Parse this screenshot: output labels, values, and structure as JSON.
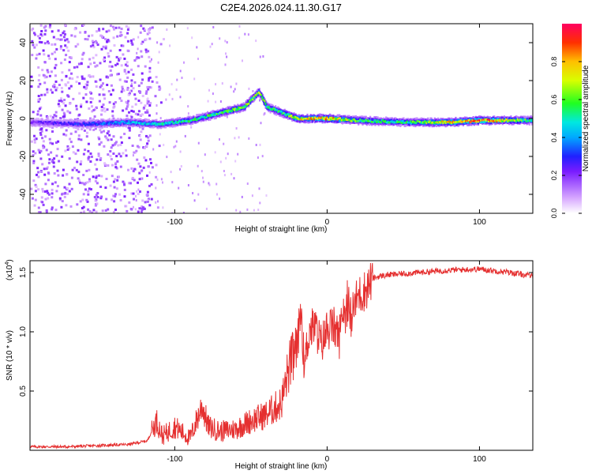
{
  "title": "C2E4.2026.024.11.30.G17",
  "chart_data": [
    {
      "type": "heatmap",
      "name": "spectrogram",
      "xlabel": "Height of straight line (km)",
      "ylabel": "Frequency (Hz)",
      "xlim": [
        -195,
        135
      ],
      "ylim": [
        -50,
        50
      ],
      "xticks": [
        -100,
        0,
        100
      ],
      "yticks": [
        -40,
        -20,
        0,
        20,
        40
      ],
      "colorbar": {
        "label": "Normalized spectral amplitude",
        "ticks": [
          "0.0",
          "0.2",
          "0.4",
          "0.6",
          "0.8"
        ],
        "tick_values": [
          0.0,
          0.2,
          0.4,
          0.6,
          0.8
        ],
        "range": [
          0,
          1
        ]
      },
      "ridge": {
        "description_points_x": [
          -195,
          -160,
          -130,
          -110,
          -90,
          -70,
          -55,
          -45,
          -40,
          -30,
          -20,
          0,
          20,
          50,
          80,
          100,
          135
        ],
        "freq": [
          -2,
          -3,
          -2,
          -3,
          -1,
          3,
          6,
          14,
          6,
          3,
          0,
          0,
          -1,
          -2,
          -2,
          -1,
          -1
        ],
        "amplitude": [
          0.2,
          0.3,
          0.4,
          0.45,
          0.5,
          0.55,
          0.6,
          0.65,
          0.5,
          0.55,
          0.7,
          0.8,
          0.55,
          0.5,
          0.75,
          0.85,
          0.5
        ]
      }
    },
    {
      "type": "line",
      "name": "snr",
      "xlabel": "Height of straight line (km)",
      "ylabel": "SNR (10 * v/v)",
      "scale_label": "(x10",
      "scale_exp": "4",
      "scale_close": ")",
      "xlim": [
        -195,
        135
      ],
      "ylim": [
        0,
        1.6
      ],
      "xticks": [
        -100,
        0,
        100
      ],
      "yticks": [
        "0.5",
        "1.0",
        "1.5"
      ],
      "ytick_values": [
        0.5,
        1.0,
        1.5
      ],
      "color": "#e53030",
      "x": [
        -195,
        -170,
        -150,
        -130,
        -118,
        -112,
        -108,
        -100,
        -90,
        -82,
        -78,
        -70,
        -60,
        -50,
        -40,
        -30,
        -25,
        -20,
        -17,
        -15,
        -12,
        -8,
        -4,
        0,
        4,
        8,
        10,
        15,
        20,
        25,
        30,
        35,
        40,
        60,
        80,
        100,
        120,
        135
      ],
      "y": [
        0.03,
        0.03,
        0.04,
        0.05,
        0.08,
        0.25,
        0.12,
        0.2,
        0.1,
        0.38,
        0.2,
        0.16,
        0.18,
        0.25,
        0.3,
        0.4,
        0.7,
        0.85,
        1.2,
        0.7,
        1.0,
        1.05,
        0.9,
        1.0,
        1.05,
        0.95,
        1.2,
        1.1,
        1.3,
        1.35,
        1.45,
        1.47,
        1.48,
        1.5,
        1.52,
        1.53,
        1.5,
        1.47
      ]
    }
  ]
}
